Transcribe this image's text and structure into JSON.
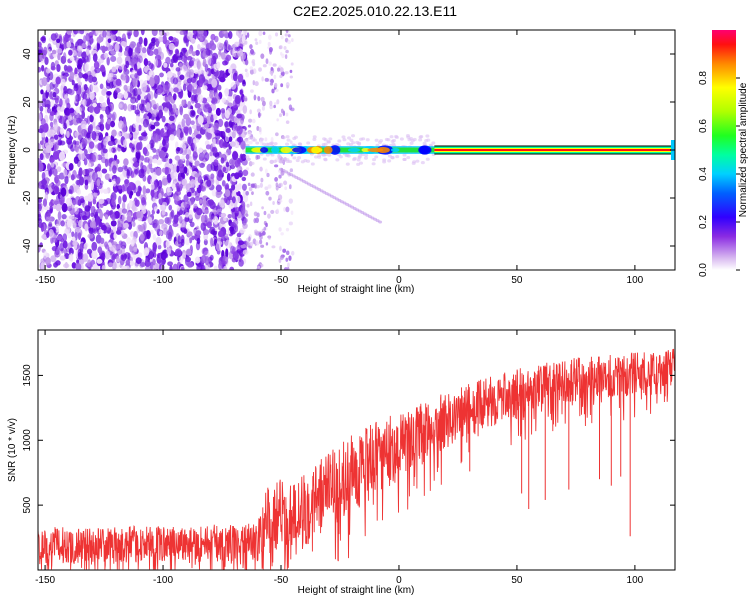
{
  "figure": {
    "title": "C2E2.2025.010.22.13.E11"
  },
  "chart_data": [
    {
      "type": "heatmap",
      "xlabel": "Height of straight line (km)",
      "ylabel": "Frequency (Hz)",
      "colorbar_label": "Normalized spectral amplitude",
      "xlim": [
        -153,
        117
      ],
      "ylim": [
        -50,
        50
      ],
      "xticks": [
        -150,
        -100,
        -50,
        0,
        50,
        100
      ],
      "yticks": [
        -40,
        -20,
        0,
        20,
        40
      ],
      "colorbar_range": [
        0,
        1
      ],
      "colorbar_ticks": [
        0.0,
        0.2,
        0.4,
        0.6,
        0.8
      ],
      "colorscale": [
        "#ffffff",
        "#e0c4f4",
        "#a050e8",
        "#6a00e0",
        "#0000ff",
        "#00bfff",
        "#00ff40",
        "#a0ff00",
        "#ffff00",
        "#ff8000",
        "#ff0000",
        "#ff0080"
      ],
      "features": {
        "noise_region_x": [
          -153,
          -65
        ],
        "sparse_noise_region_x": [
          -65,
          -45
        ],
        "carrier_line_frequency_hz": 0,
        "carrier_faint_x": [
          -65,
          15
        ],
        "carrier_strong_x": [
          15,
          117
        ],
        "faint_chirp": {
          "x": [
            -50,
            -8
          ],
          "freq_hz": [
            -8,
            -30
          ]
        }
      }
    },
    {
      "type": "line",
      "xlabel": "Height of straight line (km)",
      "ylabel": "SNR (10 * v/v)",
      "xlim": [
        -153,
        117
      ],
      "ylim": [
        0,
        1850
      ],
      "xticks": [
        -150,
        -100,
        -50,
        0,
        50,
        100
      ],
      "yticks": [
        500,
        1000,
        1500
      ],
      "series_color": "#ee3333",
      "envelope": {
        "x": [
          -153,
          -100,
          -60,
          -56,
          -52,
          -40,
          -25,
          -15,
          -5,
          5,
          20,
          35,
          50,
          60,
          70,
          80,
          90,
          100,
          110,
          117
        ],
        "mean": [
          190,
          200,
          210,
          380,
          420,
          470,
          680,
          800,
          900,
          1000,
          1150,
          1270,
          1370,
          1420,
          1460,
          1480,
          1500,
          1510,
          1520,
          1540
        ],
        "spread": [
          140,
          140,
          150,
          260,
          280,
          300,
          300,
          300,
          280,
          250,
          220,
          200,
          180,
          170,
          170,
          170,
          170,
          170,
          170,
          170
        ]
      },
      "dips": [
        {
          "x": 98,
          "y": 260
        },
        {
          "x": 55,
          "y": 470
        },
        {
          "x": 62,
          "y": 540
        },
        {
          "x": 52,
          "y": 590
        },
        {
          "x": 72,
          "y": 620
        },
        {
          "x": 85,
          "y": 700
        },
        {
          "x": 90,
          "y": 650
        },
        {
          "x": 94,
          "y": 720
        },
        {
          "x": 30,
          "y": 760
        }
      ]
    }
  ]
}
